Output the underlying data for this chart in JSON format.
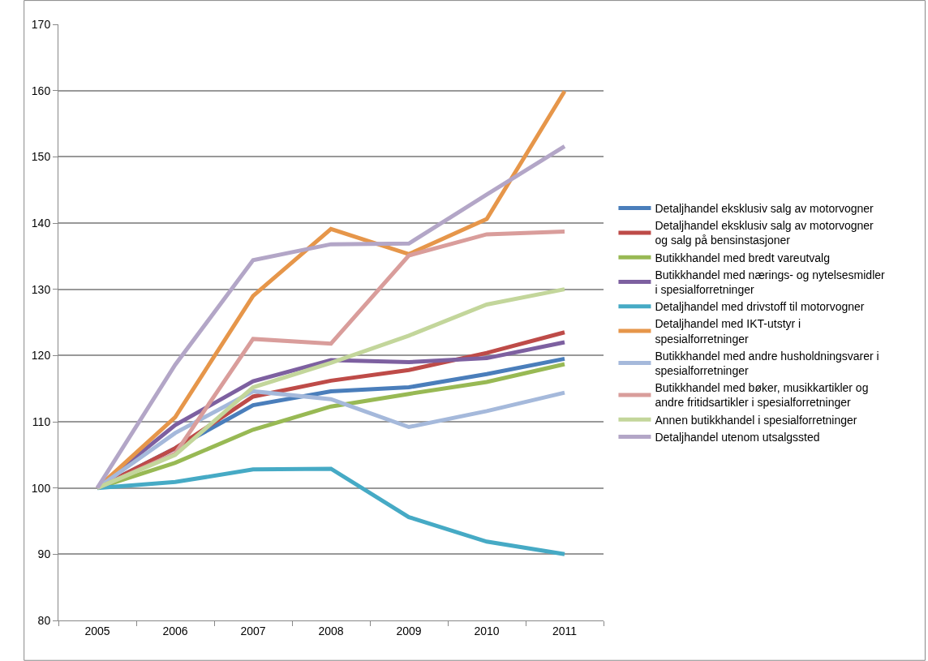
{
  "chart_data": {
    "type": "line",
    "categories": [
      "2005",
      "2006",
      "2007",
      "2008",
      "2009",
      "2010",
      "2011"
    ],
    "ylim": [
      80,
      170
    ],
    "yticks": [
      80,
      90,
      100,
      110,
      120,
      130,
      140,
      150,
      160,
      170
    ],
    "grid": "y",
    "legend": "right",
    "marker": "none",
    "line_style": "solid",
    "series": [
      {
        "name": "Detaljhandel eksklusiv salg av motorvogner",
        "color": "#4a7ebb",
        "values": [
          100,
          106,
          112.5,
          114.6,
          115.2,
          117.2,
          119.5
        ]
      },
      {
        "name": "Detaljhandel eksklusiv salg av motorvogner og salg på bensinstasjoner",
        "color": "#be4b48",
        "values": [
          100,
          106,
          113.8,
          116.2,
          117.8,
          120.4,
          123.5
        ]
      },
      {
        "name": "Butikkhandel med bredt vareutvalg",
        "color": "#98b954",
        "values": [
          100,
          103.8,
          108.8,
          112.3,
          114.2,
          116.0,
          118.7
        ]
      },
      {
        "name": "Butikkhandel med nærings- og nytelsesmidler i spesialforretninger",
        "color": "#7d60a0",
        "values": [
          100,
          109.5,
          116.1,
          119.3,
          119.0,
          119.6,
          122.0
        ]
      },
      {
        "name": "Detaljhandel med drivstoff til motorvogner",
        "color": "#46aac5",
        "values": [
          100,
          100.9,
          102.8,
          102.9,
          95.6,
          91.9,
          90.0
        ]
      },
      {
        "name": "Detaljhandel med IKT-utstyr i spesialforretninger",
        "color": "#e6964a",
        "values": [
          100,
          110.7,
          129.0,
          139.1,
          135.3,
          140.6,
          159.9
        ]
      },
      {
        "name": "Butikkhandel med andre husholdningsvarer i spesialforretninger",
        "color": "#a5b9db",
        "values": [
          100,
          108.3,
          114.6,
          113.4,
          109.2,
          111.6,
          114.4
        ]
      },
      {
        "name": "Butikkhandel med bøker, musikkartikler og andre fritidsartikler i spesialforretninger",
        "color": "#d99d9b",
        "values": [
          100,
          105.2,
          122.5,
          121.8,
          135.1,
          138.3,
          138.7
        ]
      },
      {
        "name": "Annen butikkhandel i spesialforretninger",
        "color": "#c3d69b",
        "values": [
          100,
          105.0,
          115.2,
          118.9,
          123.0,
          127.7,
          130.0
        ]
      },
      {
        "name": "Detaljhandel utenom utsalgssted",
        "color": "#b3a6c7",
        "values": [
          100,
          118.6,
          134.4,
          136.8,
          136.9,
          144.3,
          151.6
        ]
      }
    ]
  }
}
